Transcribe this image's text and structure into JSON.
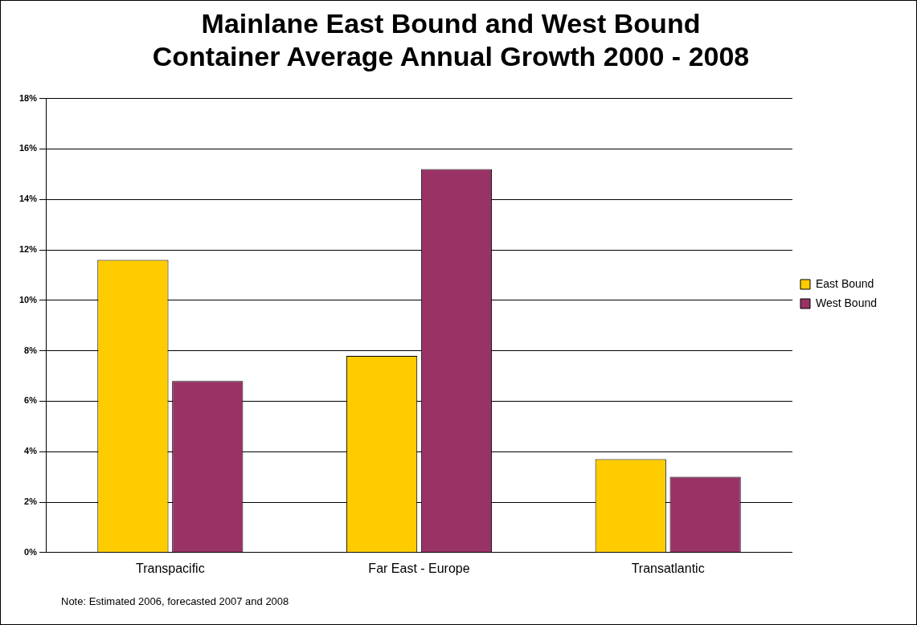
{
  "chart_data": {
    "type": "bar",
    "title": "Mainlane East Bound and West Bound\nContainer Average Annual Growth 2000 - 2008",
    "categories": [
      "Transpacific",
      "Far East - Europe",
      "Transatlantic"
    ],
    "series": [
      {
        "name": "East Bound",
        "color": "#ffcc00",
        "values": [
          11.6,
          7.8,
          3.7
        ]
      },
      {
        "name": "West Bound",
        "color": "#993366",
        "values": [
          6.8,
          15.2,
          3.0
        ]
      }
    ],
    "ylim": [
      0,
      18
    ],
    "yticks": [
      {
        "value": 0,
        "label": "0%"
      },
      {
        "value": 2,
        "label": "2%"
      },
      {
        "value": 4,
        "label": "4%"
      },
      {
        "value": 6,
        "label": "6%"
      },
      {
        "value": 8,
        "label": "8%"
      },
      {
        "value": 10,
        "label": "10%"
      },
      {
        "value": 12,
        "label": "12%"
      },
      {
        "value": 14,
        "label": "14%"
      },
      {
        "value": 16,
        "label": "16%"
      },
      {
        "value": 18,
        "label": "18%"
      }
    ],
    "grid": "y",
    "legend": "right",
    "annotations": [
      "Note: Estimated 2006, forecasted  2007 and 2008"
    ]
  }
}
